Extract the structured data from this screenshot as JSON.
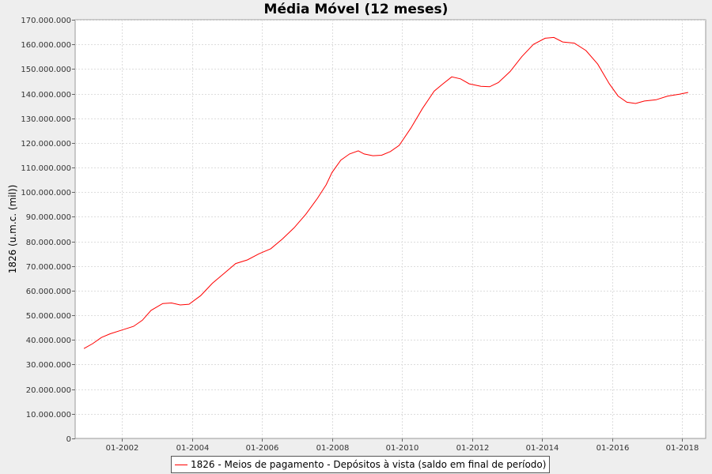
{
  "chart_data": {
    "type": "line",
    "title": "Média Móvel (12 meses)",
    "xlabel": "",
    "ylabel": "1826 (u.m.c. (mil))",
    "x_type": "date",
    "xlim": [
      "2000-09",
      "2018-09"
    ],
    "ylim": [
      0,
      170000000
    ],
    "y_ticks": [
      0,
      10000000,
      20000000,
      30000000,
      40000000,
      50000000,
      60000000,
      70000000,
      80000000,
      90000000,
      100000000,
      110000000,
      120000000,
      130000000,
      140000000,
      150000000,
      160000000,
      170000000
    ],
    "y_tick_labels": [
      "0",
      "10.000.000",
      "20.000.000",
      "30.000.000",
      "40.000.000",
      "50.000.000",
      "60.000.000",
      "70.000.000",
      "80.000.000",
      "90.000.000",
      "100.000.000",
      "110.000.000",
      "120.000.000",
      "130.000.000",
      "140.000.000",
      "150.000.000",
      "160.000.000",
      "170.000.000"
    ],
    "x_ticks": [
      "2002-01",
      "2004-01",
      "2006-01",
      "2008-01",
      "2010-01",
      "2012-01",
      "2014-01",
      "2016-01",
      "2018-01"
    ],
    "x_tick_labels": [
      "01-2002",
      "01-2004",
      "01-2006",
      "01-2008",
      "01-2010",
      "01-2012",
      "01-2014",
      "01-2016",
      "01-2018"
    ],
    "grid": true,
    "legend_position": "bottom",
    "colors": {
      "series": "#ff0000",
      "plot_background": "#ffffff",
      "grid": "#dddddd",
      "page_background": "#eeeeee"
    },
    "series": [
      {
        "name": "1826 - Meios de pagamento - Depósitos à vista (saldo em final de período)",
        "points": [
          [
            "2000-12",
            36500000
          ],
          [
            "2001-03",
            38500000
          ],
          [
            "2001-06",
            41000000
          ],
          [
            "2001-09",
            42500000
          ],
          [
            "2002-01",
            44000000
          ],
          [
            "2002-05",
            45500000
          ],
          [
            "2002-08",
            48000000
          ],
          [
            "2002-11",
            52000000
          ],
          [
            "2003-03",
            54800000
          ],
          [
            "2003-06",
            55000000
          ],
          [
            "2003-09",
            54200000
          ],
          [
            "2003-12",
            54500000
          ],
          [
            "2004-04",
            58000000
          ],
          [
            "2004-08",
            63000000
          ],
          [
            "2004-12",
            67000000
          ],
          [
            "2005-04",
            71000000
          ],
          [
            "2005-08",
            72500000
          ],
          [
            "2005-12",
            75000000
          ],
          [
            "2006-04",
            77000000
          ],
          [
            "2006-08",
            81000000
          ],
          [
            "2006-12",
            85500000
          ],
          [
            "2007-04",
            91000000
          ],
          [
            "2007-08",
            97500000
          ],
          [
            "2007-11",
            103000000
          ],
          [
            "2008-01",
            108000000
          ],
          [
            "2008-04",
            113000000
          ],
          [
            "2008-07",
            115500000
          ],
          [
            "2008-10",
            116800000
          ],
          [
            "2008-12",
            115500000
          ],
          [
            "2009-03",
            114800000
          ],
          [
            "2009-06",
            115000000
          ],
          [
            "2009-09",
            116500000
          ],
          [
            "2009-12",
            119000000
          ],
          [
            "2010-04",
            126000000
          ],
          [
            "2010-08",
            134000000
          ],
          [
            "2010-12",
            141000000
          ],
          [
            "2011-03",
            144000000
          ],
          [
            "2011-06",
            146800000
          ],
          [
            "2011-09",
            146000000
          ],
          [
            "2011-12",
            144000000
          ],
          [
            "2012-04",
            143000000
          ],
          [
            "2012-07",
            142800000
          ],
          [
            "2012-10",
            144500000
          ],
          [
            "2013-02",
            149000000
          ],
          [
            "2013-06",
            155000000
          ],
          [
            "2013-10",
            160000000
          ],
          [
            "2014-02",
            162500000
          ],
          [
            "2014-05",
            162800000
          ],
          [
            "2014-08",
            161000000
          ],
          [
            "2014-12",
            160500000
          ],
          [
            "2015-04",
            157500000
          ],
          [
            "2015-08",
            152000000
          ],
          [
            "2015-12",
            144000000
          ],
          [
            "2016-03",
            139000000
          ],
          [
            "2016-06",
            136500000
          ],
          [
            "2016-09",
            136000000
          ],
          [
            "2016-12",
            137000000
          ],
          [
            "2017-04",
            137500000
          ],
          [
            "2017-08",
            139000000
          ],
          [
            "2017-12",
            139800000
          ],
          [
            "2018-03",
            140500000
          ]
        ]
      }
    ]
  }
}
